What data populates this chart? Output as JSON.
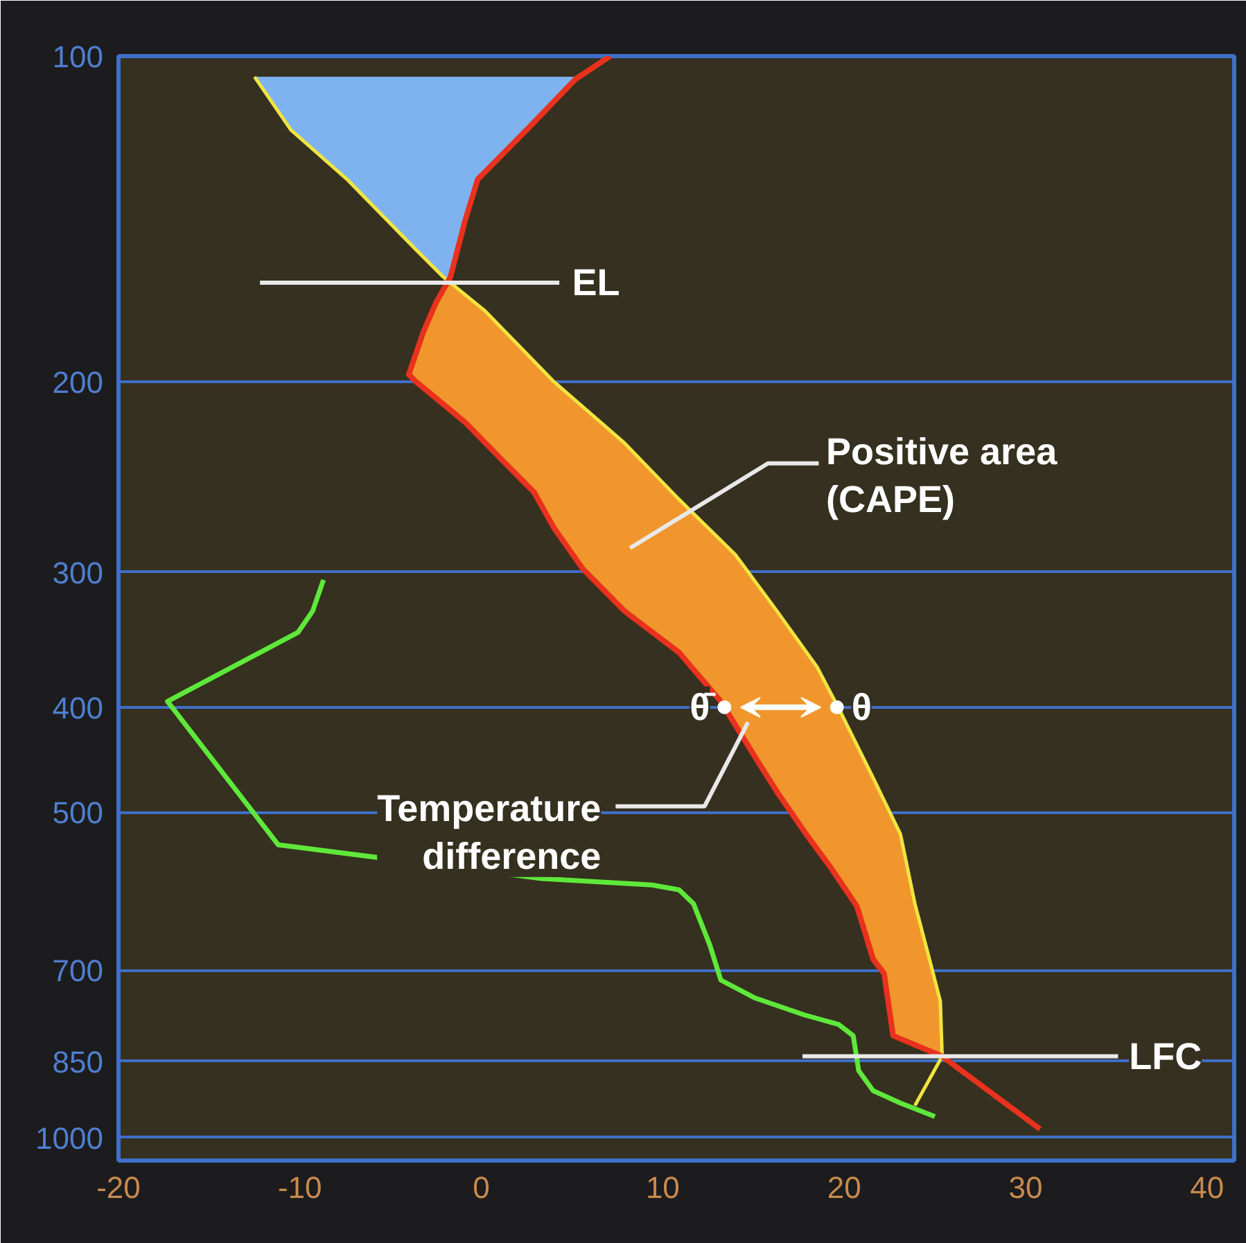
{
  "chart_data": {
    "type": "line",
    "xlim": [
      -20,
      41.5
    ],
    "ylim": [
      1050,
      100
    ],
    "log": "y",
    "xticks": [
      -20,
      -10,
      0,
      10,
      20,
      30,
      40
    ],
    "yticks": [
      100,
      200,
      300,
      400,
      500,
      700,
      850,
      1000
    ],
    "grid": "y",
    "marker": "none",
    "line_style": "solid",
    "series": [
      {
        "type": "area",
        "color": "#f0962c",
        "x": [
          25.4,
          25.3,
          24.7,
          23.9,
          23.1,
          21.6,
          19.7,
          18.5,
          16.3,
          14.0,
          10.9,
          7.9,
          4.0,
          0.2,
          -1.7,
          -2.5,
          -3.2,
          -4.0,
          -3.6,
          -0.9,
          1.0,
          2.9,
          4.0,
          5.6,
          7.9,
          10.9,
          13.2,
          15.1,
          16.3,
          17.9,
          19.3,
          20.7,
          21.6,
          22.2,
          22.7,
          25.4
        ],
        "values": [
          841,
          748,
          684,
          608,
          524,
          465,
          401,
          367,
          326,
          289,
          257,
          228,
          200,
          172,
          162,
          169,
          180,
          197,
          200,
          218,
          235,
          253,
          273,
          298,
          326,
          356,
          395,
          445,
          479,
          524,
          564,
          611,
          684,
          705,
          805,
          841
        ]
      },
      {
        "type": "area",
        "color": "#7fb3ef",
        "x": [
          -1.7,
          -3.6,
          -7.4,
          -10.5,
          -12.5,
          5.4,
          2.5,
          -0.2,
          -0.9,
          -1.7
        ],
        "values": [
          162,
          151,
          130,
          117,
          104.5,
          104.5,
          117,
          130,
          142,
          160
        ]
      },
      {
        "color": "#f0e440",
        "x": [
          23.9,
          25.4,
          25.3,
          24.7,
          23.9,
          23.1,
          21.6,
          19.7,
          18.5,
          16.3,
          14.0,
          10.9,
          7.9,
          4.0,
          0.2,
          -2.1,
          -3.6,
          -7.4,
          -10.5,
          -12.5
        ],
        "values": [
          934,
          841,
          748,
          684,
          608,
          524,
          465,
          401,
          367,
          326,
          289,
          257,
          228,
          200,
          172,
          160,
          151,
          130,
          117,
          104.5
        ]
      },
      {
        "color": "#e8321e",
        "x": [
          30.8,
          25.4,
          22.7,
          22.2,
          21.6,
          20.7,
          19.3,
          17.9,
          16.3,
          15.1,
          13.2,
          10.9,
          7.9,
          5.6,
          4.0,
          2.9,
          1.0,
          -0.9,
          -3.6,
          -4.0,
          -3.2,
          -2.5,
          -1.7,
          -0.9,
          -0.2,
          2.5,
          5.2,
          7.1
        ],
        "values": [
          982,
          841,
          805,
          705,
          684,
          611,
          564,
          524,
          479,
          445,
          395,
          356,
          326,
          298,
          273,
          253,
          235,
          218,
          200,
          197,
          180,
          169,
          160,
          142,
          130,
          117,
          105,
          100
        ]
      },
      {
        "color": "#5ee83a",
        "x": [
          25.0,
          23.1,
          21.6,
          20.8,
          20.5,
          19.7,
          17.8,
          15.1,
          13.2,
          12.6,
          11.7,
          10.9,
          9.4,
          3.3,
          -11.2,
          -17.3,
          -10.1,
          -9.3,
          -8.7
        ],
        "values": [
          956,
          929,
          905,
          867,
          805,
          786,
          770,
          743,
          715,
          664,
          608,
          590,
          584,
          576,
          536,
          395,
          341,
          326,
          305
        ]
      }
    ],
    "annotations": [
      "EL",
      "LFC",
      "Positive area\n(CAPE)",
      "Temperature\ndifference",
      {
        "text": "θ̄",
        "x": 13.4,
        "y": 400
      },
      {
        "text": "θ",
        "x": 19.6,
        "y": 400
      }
    ]
  }
}
